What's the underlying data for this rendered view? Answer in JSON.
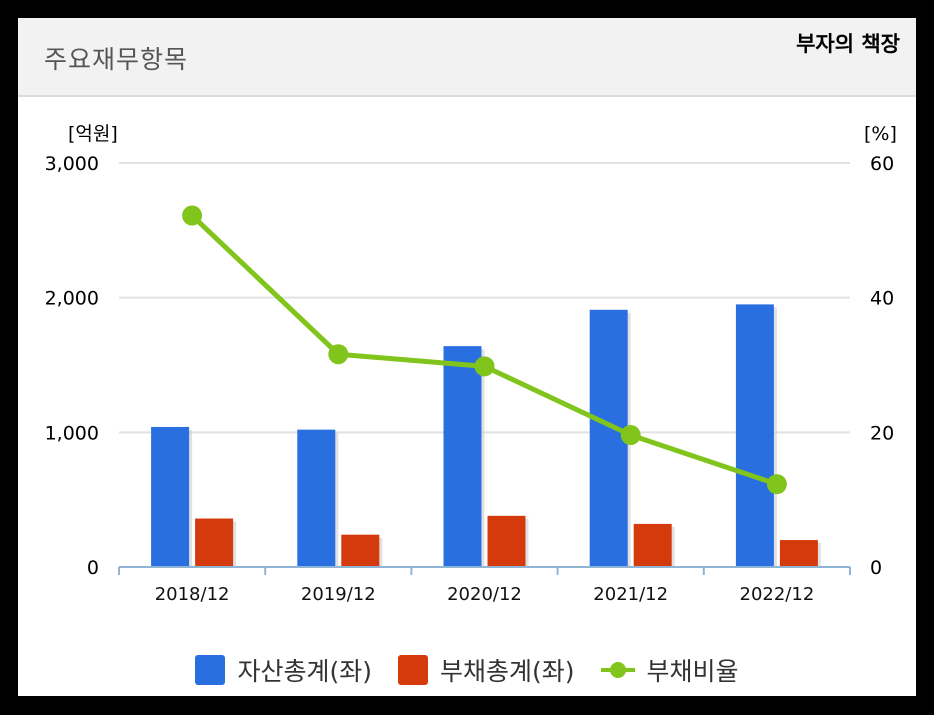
{
  "header": {
    "title": "주요재무항목",
    "badge": "부자의 책장"
  },
  "chart_data": {
    "type": "bar",
    "categories": [
      "2018/12",
      "2019/12",
      "2020/12",
      "2021/12",
      "2022/12"
    ],
    "series": [
      {
        "name": "자산총계(좌)",
        "type": "bar",
        "axis": "left",
        "color": "#2a6fe0",
        "values": [
          1040,
          1020,
          1640,
          1910,
          1950
        ]
      },
      {
        "name": "부채총계(좌)",
        "type": "bar",
        "axis": "left",
        "color": "#d43a0c",
        "values": [
          360,
          240,
          380,
          320,
          200
        ]
      },
      {
        "name": "부채비율",
        "type": "line",
        "axis": "right",
        "color": "#80c41c",
        "values": [
          52.2,
          31.6,
          29.8,
          19.6,
          12.3
        ]
      }
    ],
    "y_left": {
      "unit": "[억원]",
      "ylim": [
        0,
        3000
      ],
      "ticks": [
        "0",
        "1,000",
        "2,000",
        "3,000"
      ],
      "tick_values": [
        0,
        1000,
        2000,
        3000
      ]
    },
    "y_right": {
      "unit": "[%]",
      "ylim": [
        0,
        60
      ],
      "ticks": [
        "0",
        "20",
        "40",
        "60"
      ],
      "tick_values": [
        0,
        20,
        40,
        60
      ]
    },
    "grid": true,
    "legend": "bottom-center"
  }
}
